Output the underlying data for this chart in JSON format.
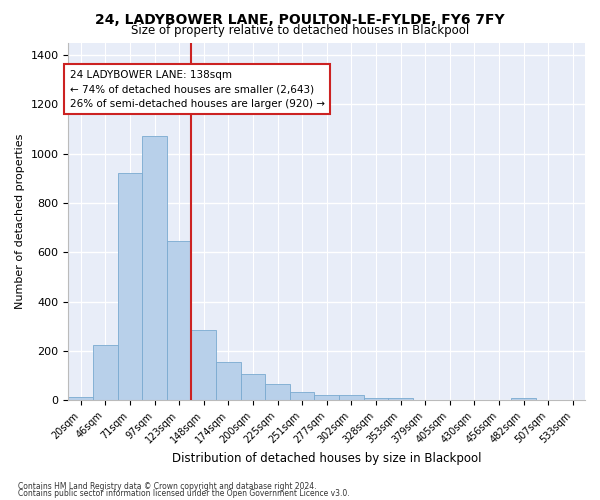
{
  "title": "24, LADYBOWER LANE, POULTON-LE-FYLDE, FY6 7FY",
  "subtitle": "Size of property relative to detached houses in Blackpool",
  "xlabel": "Distribution of detached houses by size in Blackpool",
  "ylabel": "Number of detached properties",
  "bar_labels": [
    "20sqm",
    "46sqm",
    "71sqm",
    "97sqm",
    "123sqm",
    "148sqm",
    "174sqm",
    "200sqm",
    "225sqm",
    "251sqm",
    "277sqm",
    "302sqm",
    "328sqm",
    "353sqm",
    "379sqm",
    "405sqm",
    "430sqm",
    "456sqm",
    "482sqm",
    "507sqm",
    "533sqm"
  ],
  "bar_values": [
    15,
    225,
    920,
    1070,
    645,
    285,
    155,
    105,
    65,
    35,
    20,
    20,
    10,
    10,
    0,
    0,
    0,
    0,
    10,
    0,
    0
  ],
  "bar_color": "#b8d0ea",
  "bar_edge_color": "#7aaad0",
  "vline_color": "#cc2222",
  "annotation_title": "24 LADYBOWER LANE: 138sqm",
  "annotation_line1": "← 74% of detached houses are smaller (2,643)",
  "annotation_line2": "26% of semi-detached houses are larger (920) →",
  "annotation_box_color": "#ffffff",
  "annotation_box_edge": "#cc2222",
  "ylim": [
    0,
    1450
  ],
  "yticks": [
    0,
    200,
    400,
    600,
    800,
    1000,
    1200,
    1400
  ],
  "background_color": "#e8edf8",
  "grid_color": "#ffffff",
  "footnote1": "Contains HM Land Registry data © Crown copyright and database right 2024.",
  "footnote2": "Contains public sector information licensed under the Open Government Licence v3.0."
}
